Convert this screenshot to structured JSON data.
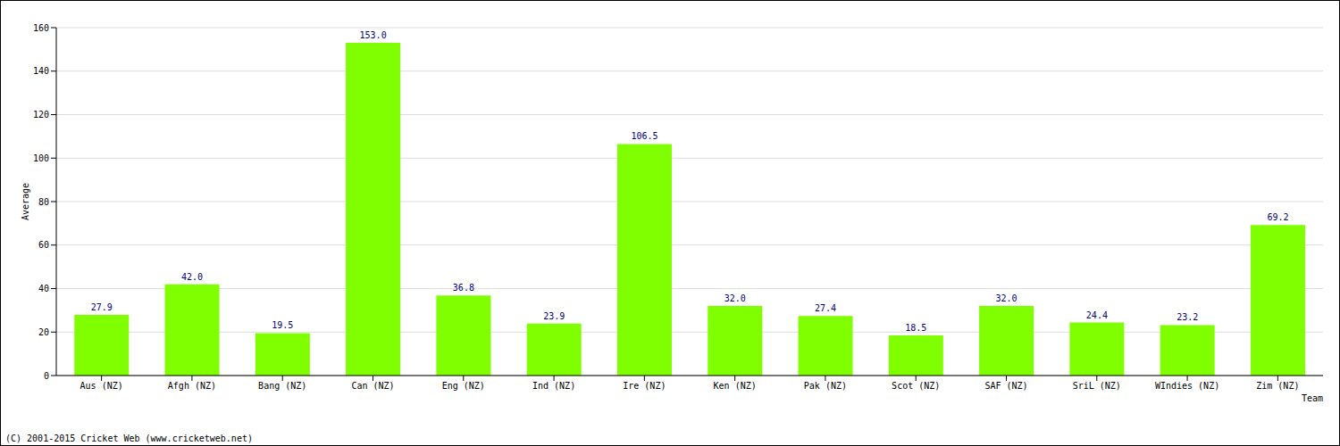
{
  "chart_data": {
    "type": "bar",
    "categories": [
      "Aus (NZ)",
      "Afgh (NZ)",
      "Bang (NZ)",
      "Can (NZ)",
      "Eng (NZ)",
      "Ind (NZ)",
      "Ire (NZ)",
      "Ken (NZ)",
      "Pak (NZ)",
      "Scot (NZ)",
      "SAF (NZ)",
      "SriL (NZ)",
      "WIndies (NZ)",
      "Zim (NZ)"
    ],
    "values": [
      27.9,
      42.0,
      19.5,
      153.0,
      36.8,
      23.9,
      106.5,
      32.0,
      27.4,
      18.5,
      32.0,
      24.4,
      23.2,
      69.2
    ],
    "value_labels": [
      "27.9",
      "42.0",
      "19.5",
      "153.0",
      "36.8",
      "23.9",
      "106.5",
      "32.0",
      "27.4",
      "18.5",
      "32.0",
      "24.4",
      "23.2",
      "69.2"
    ],
    "color": "#7fff00",
    "ylim": [
      0,
      160
    ],
    "yticks": [
      0,
      20,
      40,
      60,
      80,
      100,
      120,
      140,
      160
    ],
    "grid": true,
    "data_labels": true,
    "y_label": "Average",
    "x_label": "Team",
    "footer": "(C) 2001-2015 Cricket Web (www.cricketweb.net)"
  }
}
